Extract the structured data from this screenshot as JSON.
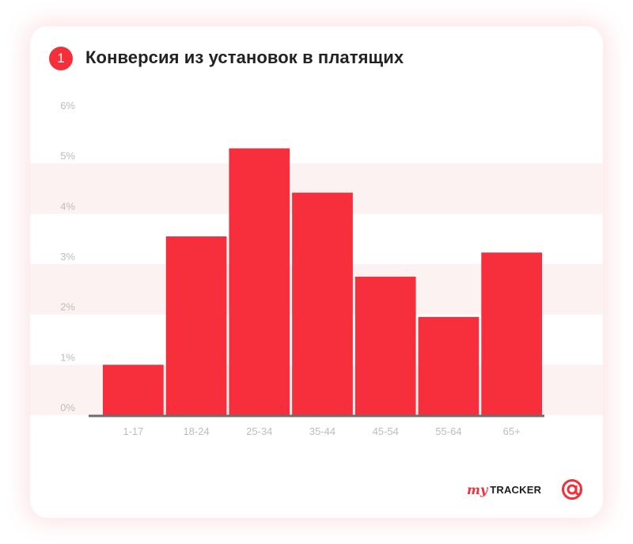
{
  "header": {
    "badge_number": "1",
    "title": "Конверсия из установок в платящих"
  },
  "chart_data": {
    "type": "bar",
    "title": "Конверсия из установок в платящих",
    "xlabel": "",
    "ylabel": "",
    "categories": [
      "1-17",
      "18-24",
      "25-34",
      "35-44",
      "45-54",
      "55-64",
      "65+"
    ],
    "values": [
      1.0,
      3.55,
      5.3,
      4.42,
      2.75,
      1.95,
      3.23
    ],
    "ylim": [
      0,
      6
    ],
    "yticks": [
      "0%",
      "1%",
      "2%",
      "3%",
      "4%",
      "5%",
      "6%"
    ],
    "grid": "alternating bands",
    "colors": {
      "bar": "#f72f3c",
      "band": "#fdf2f2",
      "axis": "#6d6d6d",
      "tick_label": "#bdbdbd"
    }
  },
  "brand": {
    "logo_prefix": "my",
    "logo_name": "TRACKER",
    "at_icon": "at-sign-icon",
    "accent": "#f42f3a"
  }
}
